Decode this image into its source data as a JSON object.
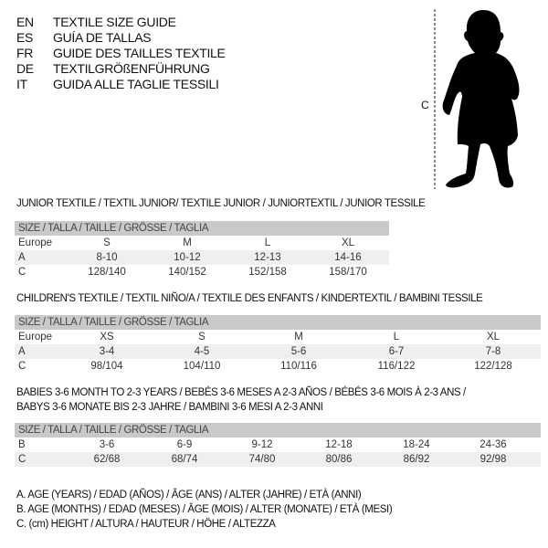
{
  "languages": [
    {
      "code": "EN",
      "title": "TEXTILE SIZE GUIDE"
    },
    {
      "code": "ES",
      "title": "GUÍA DE TALLAS"
    },
    {
      "code": "FR",
      "title": "GUIDE DES TAILLES TEXTILE"
    },
    {
      "code": "DE",
      "title": "TEXTILGRÖßENFÜHRUNG"
    },
    {
      "code": "IT",
      "title": "GUIDA ALLE TAGLIE TESSILI"
    }
  ],
  "figure": {
    "height_label": "C",
    "icon": "child-silhouette-icon"
  },
  "size_header": "SIZE / TALLA / TAILLE / GRÖSSE / TAGLIA",
  "junior": {
    "title": "JUNIOR TEXTILE / TEXTIL JUNIOR/ TEXTILE JUNIOR / JUNIORTEXTIL / JUNIOR TESSILE",
    "rows": [
      {
        "label": "Europe",
        "values": [
          "S",
          "M",
          "L",
          "XL"
        ]
      },
      {
        "label": "A",
        "values": [
          "8-10",
          "10-12",
          "12-13",
          "14-16"
        ]
      },
      {
        "label": "C",
        "values": [
          "128/140",
          "140/152",
          "152/158",
          "158/170"
        ]
      }
    ]
  },
  "children": {
    "title": "CHILDREN'S TEXTILE / TEXTIL NIÑO/A / TEXTILE DES ENFANTS / KINDERTEXTIL / BAMBINI TESSILE",
    "rows": [
      {
        "label": "Europe",
        "values": [
          "XS",
          "S",
          "M",
          "L",
          "XL"
        ]
      },
      {
        "label": "A",
        "values": [
          "3-4",
          "4-5",
          "5-6",
          "6-7",
          "7-8"
        ]
      },
      {
        "label": "C",
        "values": [
          "98/104",
          "104/110",
          "110/116",
          "116/122",
          "122/128"
        ]
      }
    ]
  },
  "babies": {
    "title_line1": "BABIES 3-6 MONTH TO 2-3 YEARS / BEBÉS 3-6 MESES A 2-3 AÑOS / BÉBÉS 3-6 MOIS À 2-3 ANS /",
    "title_line2": "BABYS 3-6 MONATE BIS 2-3 JAHRE / BAMBINI 3-6 MESI A 2-3 ANNI",
    "rows": [
      {
        "label": "B",
        "values": [
          "3-6",
          "6-9",
          "9-12",
          "12-18",
          "18-24",
          "24-36"
        ]
      },
      {
        "label": "C",
        "values": [
          "62/68",
          "68/74",
          "74/80",
          "80/86",
          "86/92",
          "92/98"
        ]
      }
    ]
  },
  "legend": [
    "A. AGE (YEARS) / EDAD (AÑOS) / ÂGE (ANS) / ALTER (JAHRE) / ETÀ (ANNI)",
    "B. AGE (MONTHS) / EDAD (MESES) / ÂGE (MOIS) / ALTER (MONATE) / ETÀ (MESI)",
    "C. (cm) HEIGHT / ALTURA / HAUTEUR / HÖHE / ALTEZZA"
  ]
}
